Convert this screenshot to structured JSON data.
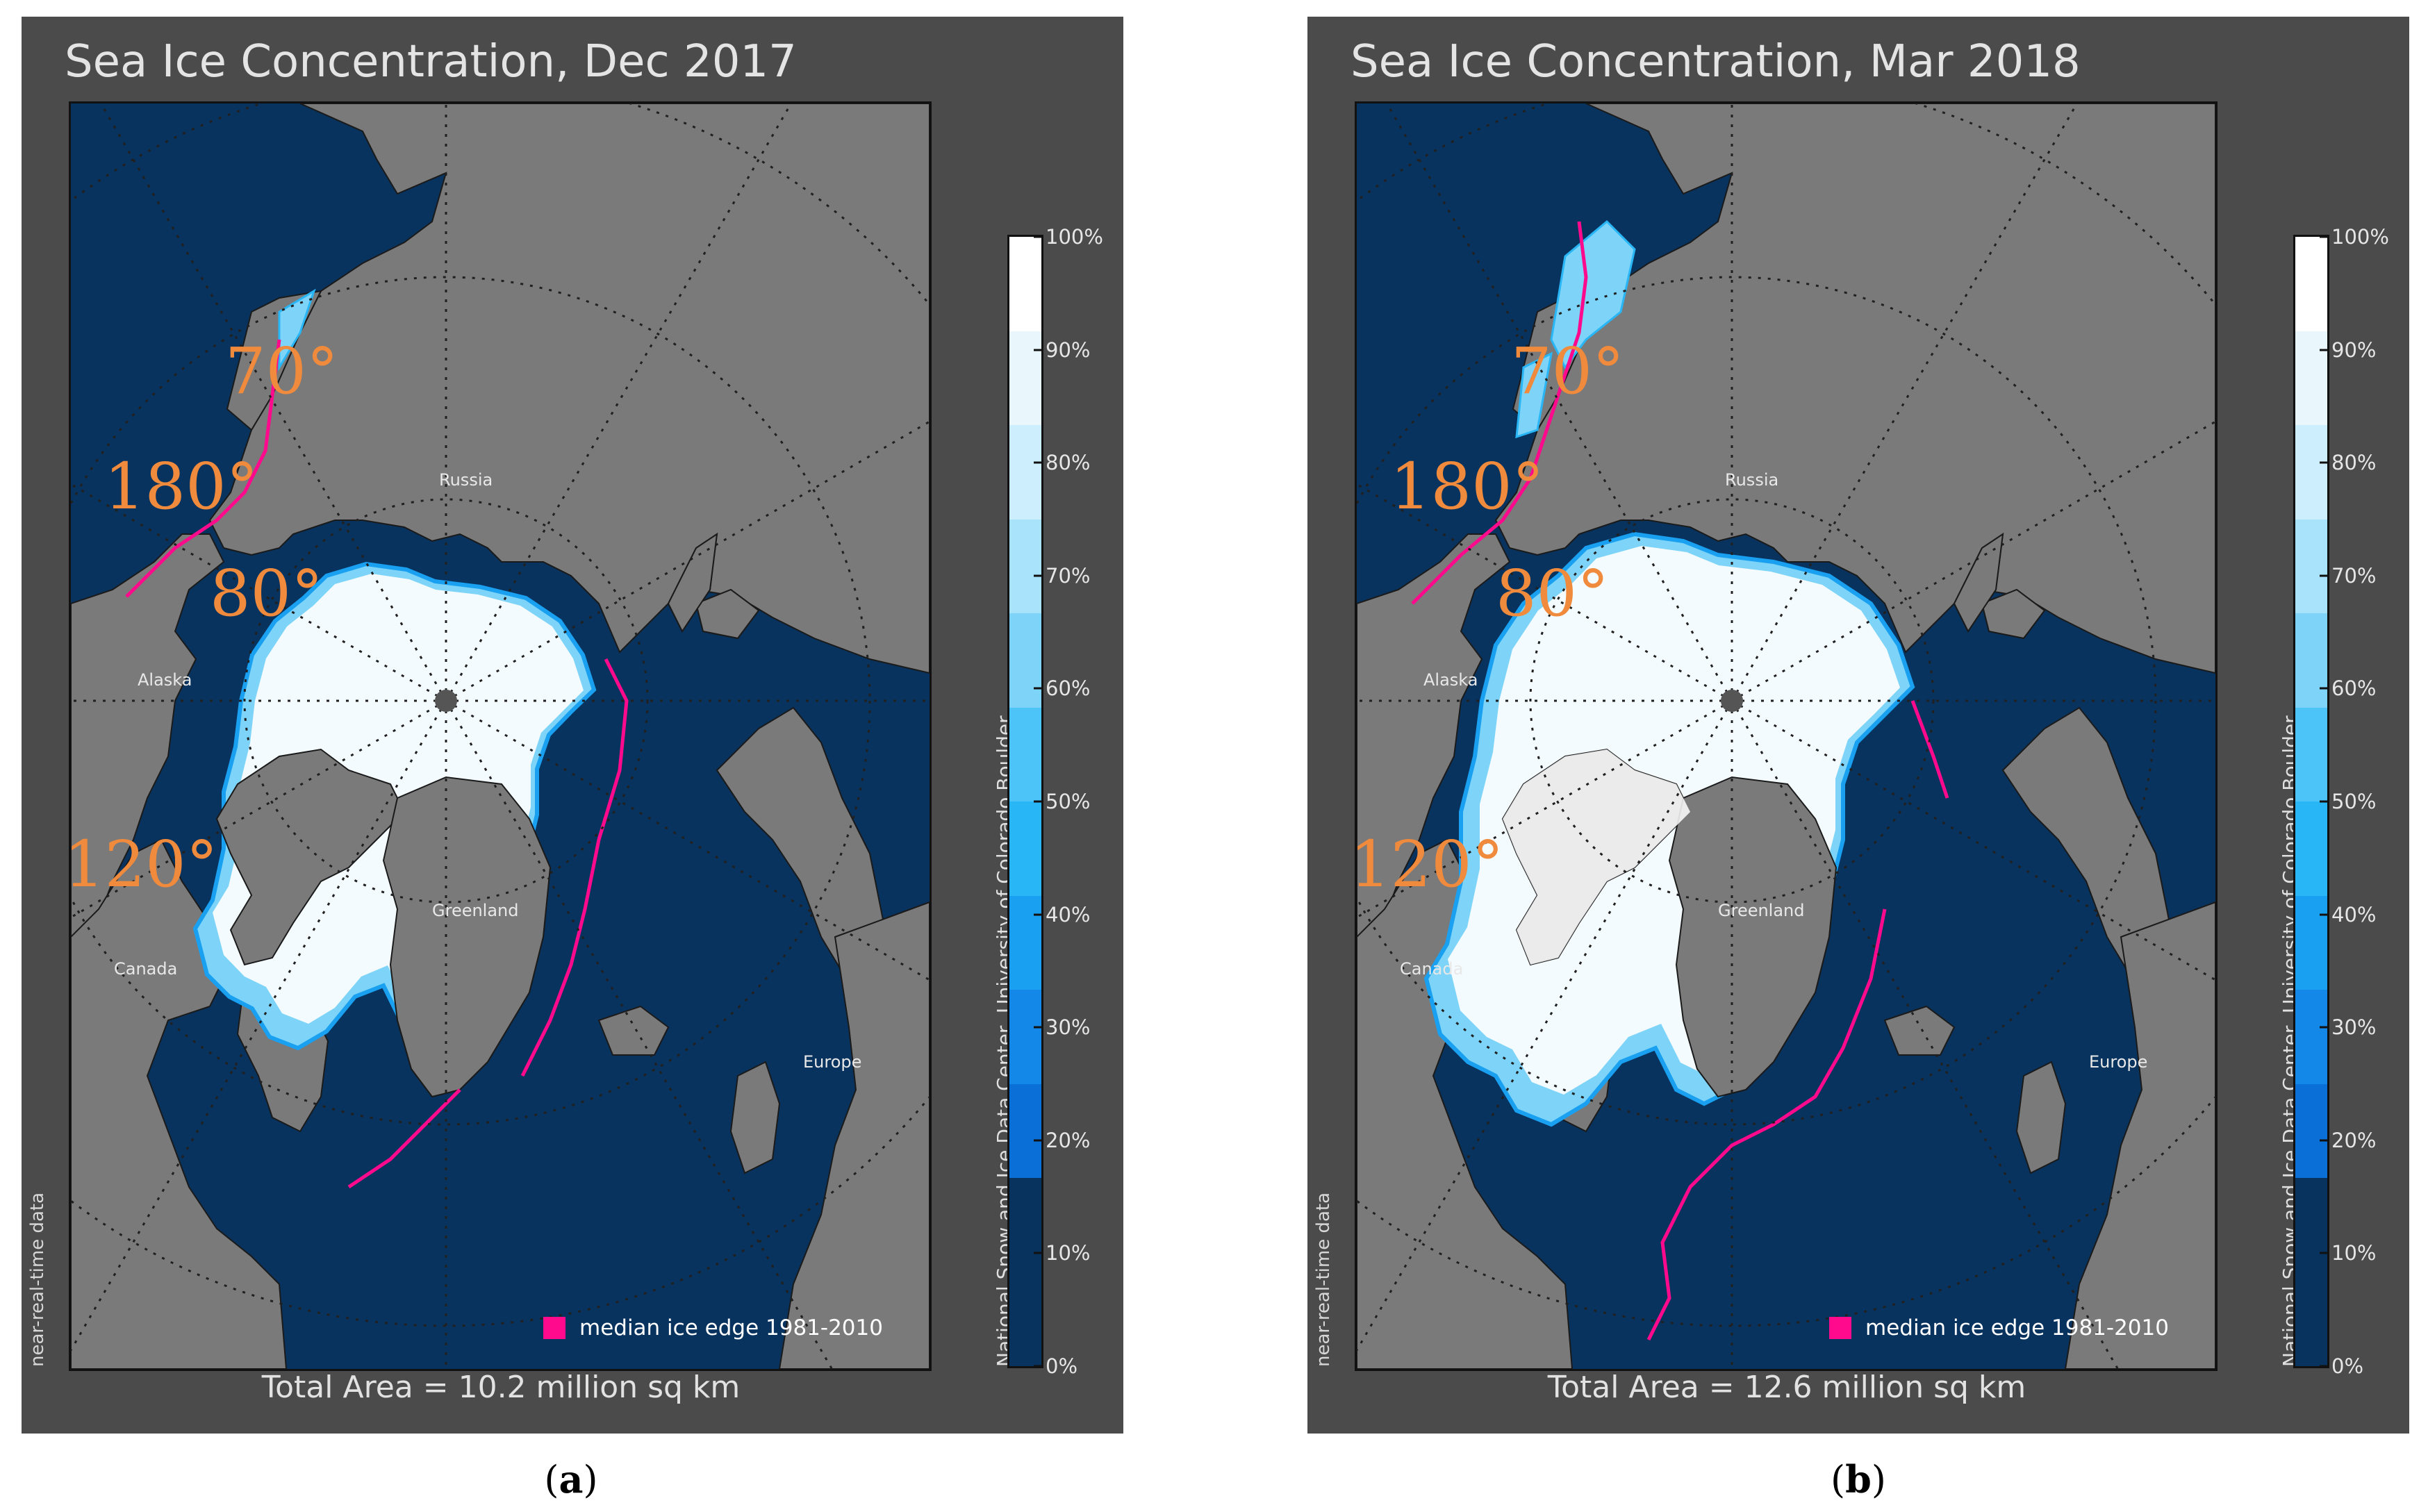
{
  "panels": [
    {
      "title": "Sea Ice Concentration, Dec 2017",
      "total_area": "Total Area = 10.2 million sq km",
      "caption_letter": "a",
      "ice_scale": 0.82
    },
    {
      "title": "Sea Ice Concentration, Mar 2018",
      "total_area": "Total Area = 12.6 million sq km",
      "caption_letter": "b",
      "ice_scale": 1.0
    }
  ],
  "colorbar": {
    "ticks": [
      "0%",
      "10%",
      "20%",
      "30%",
      "40%",
      "50%",
      "60%",
      "70%",
      "80%",
      "90%",
      "100%"
    ],
    "colors": [
      "#08335e",
      "#08335e",
      "#0a6fd6",
      "#1488e8",
      "#1aa0f0",
      "#29b6f6",
      "#4cc4f7",
      "#7dd4f8",
      "#a8e2fb",
      "#cdeefc",
      "#e9f7fd",
      "#ffffff"
    ]
  },
  "legend": {
    "label": "median ice edge 1981-2010",
    "color": "#ff0a8c"
  },
  "credit": "National Snow and Ice Data Center, University of Colorado Boulder",
  "nrt_label": "near-real-time data",
  "grid_labels": {
    "lat70": "70°",
    "lat80": "80°",
    "lon180": "180°",
    "lon120": "120°"
  },
  "region_labels": {
    "russia": "Russia",
    "alaska": "Alaska",
    "greenland": "Greenland",
    "canada": "Canada",
    "europe": "Europe"
  },
  "colors": {
    "ocean": "#08335e",
    "land": "#7a7a7a",
    "frame": "#4b4b4b",
    "label": "#f08a3c"
  }
}
